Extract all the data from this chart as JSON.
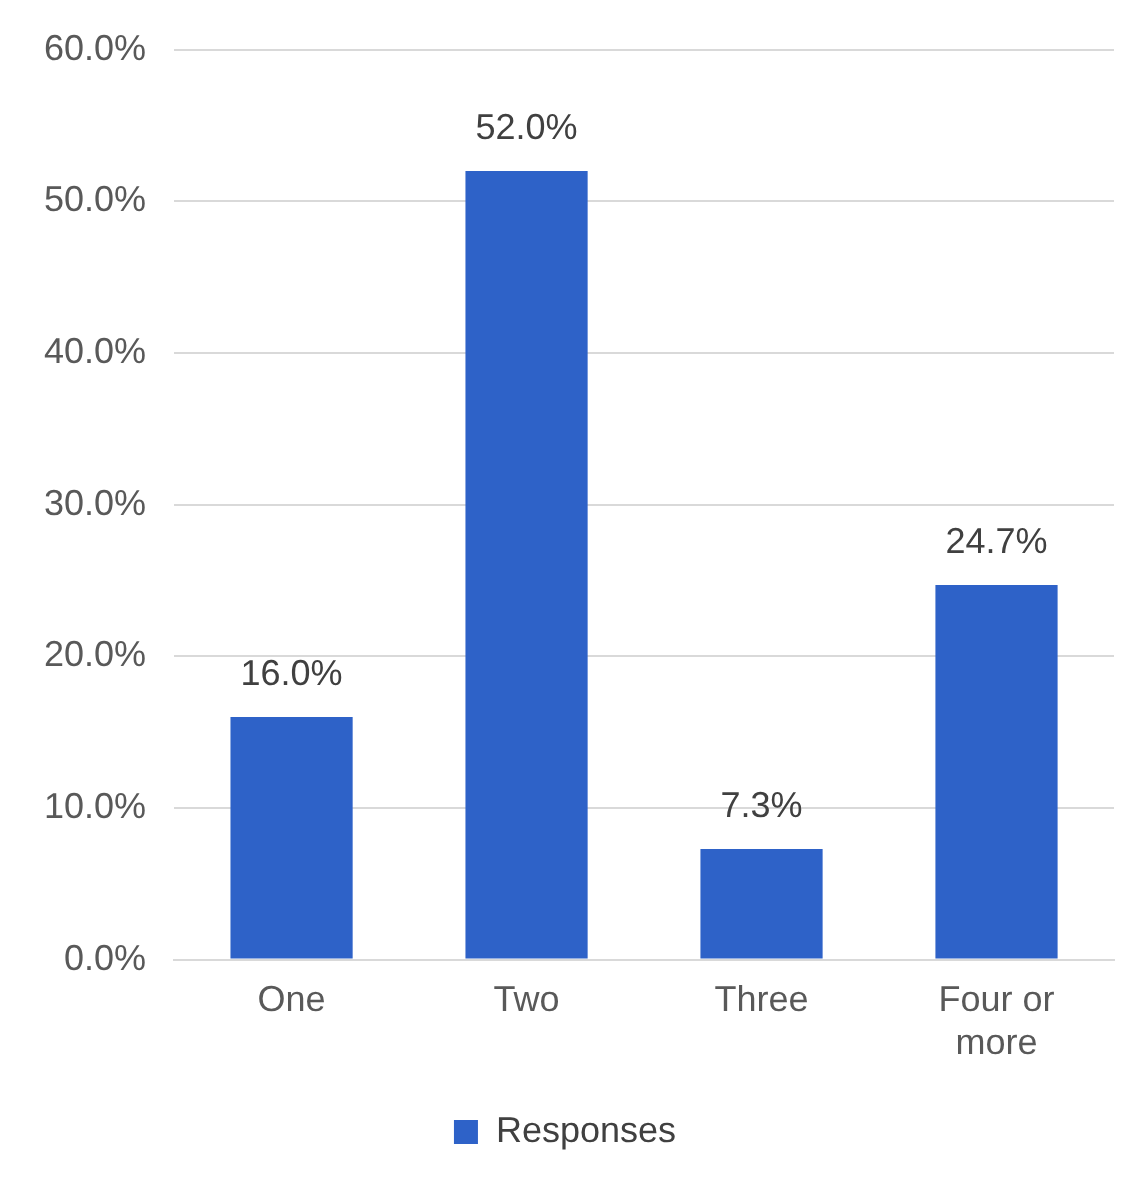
{
  "chart_data": {
    "type": "bar",
    "categories": [
      "One",
      "Two",
      "Three",
      "Four or more"
    ],
    "series": [
      {
        "name": "Responses",
        "color": "#2e62c8",
        "values": [
          16.0,
          52.0,
          7.3,
          24.7
        ],
        "value_labels": [
          "16.0%",
          "52.0%",
          "7.3%",
          "24.7%"
        ]
      }
    ],
    "ylim": [
      0,
      60
    ],
    "yticks": [
      {
        "value": 0,
        "label": "0.0%"
      },
      {
        "value": 10,
        "label": "10.0%"
      },
      {
        "value": 20,
        "label": "20.0%"
      },
      {
        "value": 30,
        "label": "30.0%"
      },
      {
        "value": 40,
        "label": "40.0%"
      },
      {
        "value": 50,
        "label": "50.0%"
      },
      {
        "value": 60,
        "label": "60.0%"
      }
    ],
    "grid": "y",
    "legend": "bottom"
  }
}
